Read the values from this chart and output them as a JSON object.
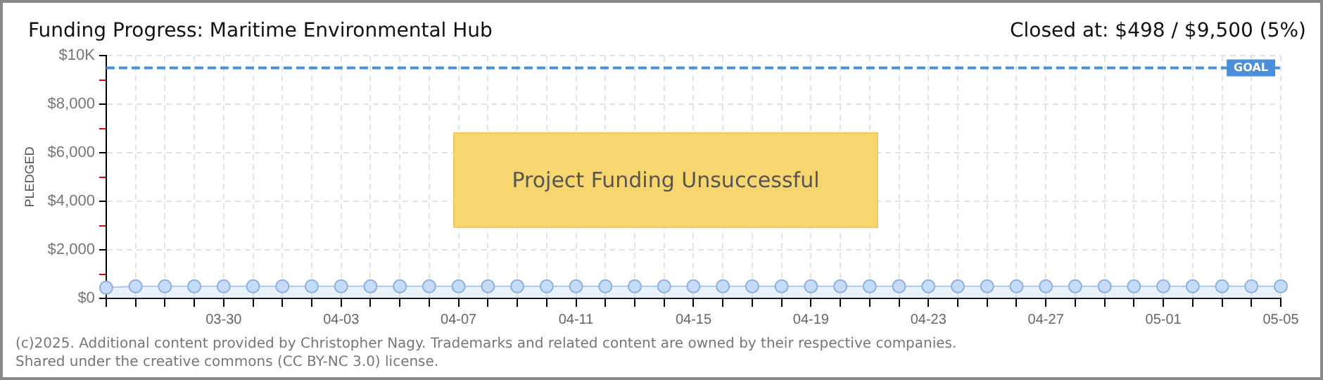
{
  "chart_data": {
    "type": "area",
    "title": "Funding Progress: Maritime Environmental Hub",
    "subtitle": "Closed at: $498 / $9,500 (5%)",
    "ylabel": "PLEDGED",
    "categories": [
      null,
      null,
      null,
      null,
      "03-30",
      null,
      null,
      null,
      "04-03",
      null,
      null,
      null,
      "04-07",
      null,
      null,
      null,
      "04-11",
      null,
      null,
      null,
      "04-15",
      null,
      null,
      null,
      "04-19",
      null,
      null,
      null,
      "04-23",
      null,
      null,
      null,
      "04-27",
      null,
      null,
      null,
      "05-01",
      null,
      null,
      null,
      "05-05"
    ],
    "series": [
      {
        "color": "#a9c9f0",
        "values": [
          440,
          498,
          498,
          498,
          498,
          498,
          498,
          498,
          498,
          498,
          498,
          498,
          498,
          498,
          498,
          498,
          498,
          498,
          498,
          498,
          498,
          498,
          498,
          498,
          498,
          498,
          498,
          498,
          498,
          498,
          498,
          498,
          498,
          498,
          498,
          498,
          498,
          498,
          498,
          498,
          498
        ]
      }
    ],
    "ylim": [
      0,
      10000
    ],
    "yticks": [
      {
        "value": 0,
        "label": "$0"
      },
      {
        "value": 1000,
        "label": null
      },
      {
        "value": 2000,
        "label": "$2,000"
      },
      {
        "value": 3000,
        "label": null
      },
      {
        "value": 4000,
        "label": "$4,000"
      },
      {
        "value": 5000,
        "label": null
      },
      {
        "value": 6000,
        "label": "$6,000"
      },
      {
        "value": 7000,
        "label": null
      },
      {
        "value": 8000,
        "label": "$8,000"
      },
      {
        "value": 9000,
        "label": null
      },
      {
        "value": 10000,
        "label": "$10K"
      }
    ],
    "ref_lines": [
      {
        "axis": "y",
        "value": 9500,
        "label": "GOAL",
        "color": "#4a8fdc",
        "line_style": "dashed"
      }
    ],
    "grid": true,
    "marker": "circle",
    "legend": false,
    "annotations": [
      "Project Funding Unsuccessful",
      "(c)2025. Additional content provided by Christopher Nagy. Trademarks and related content are owned by their respective companies.",
      "Shared under the creative commons (CC BY-NC 3.0) license."
    ]
  }
}
